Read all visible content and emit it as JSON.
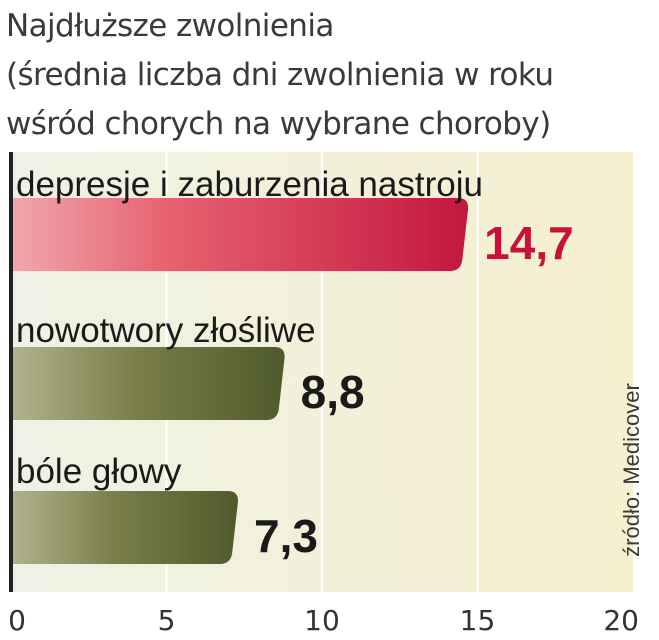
{
  "title_lines": [
    "Najdłuższe zwolnienia",
    "(średnia liczba dni zwolnienia w roku",
    "wśród chorych na wybrane choroby)"
  ],
  "source": "źródło: Medicover",
  "colors": {
    "highlight_bar": "#c3173f",
    "highlight_label": "#c8103a",
    "regular_bar": "#4f5a2b",
    "background_left": "#eef1e4",
    "background_right": "#f6f0cf",
    "axis": "#222222",
    "grid": "#ffffff",
    "text": "#1a1a1a"
  },
  "chart_data": {
    "type": "bar",
    "orientation": "horizontal",
    "categories": [
      "depresje i zaburzenia nastroju",
      "nowotwory złośliwe",
      "bóle głowy"
    ],
    "values": [
      14.7,
      8.8,
      7.3
    ],
    "value_labels": [
      "14,7",
      "8,8",
      "7,3"
    ],
    "highlight_index": 0,
    "xlim": [
      0,
      20
    ],
    "xticks": [
      0,
      5,
      10,
      15,
      20
    ],
    "xtick_labels": [
      "0",
      "5",
      "10",
      "15",
      "20"
    ],
    "grid": true
  }
}
